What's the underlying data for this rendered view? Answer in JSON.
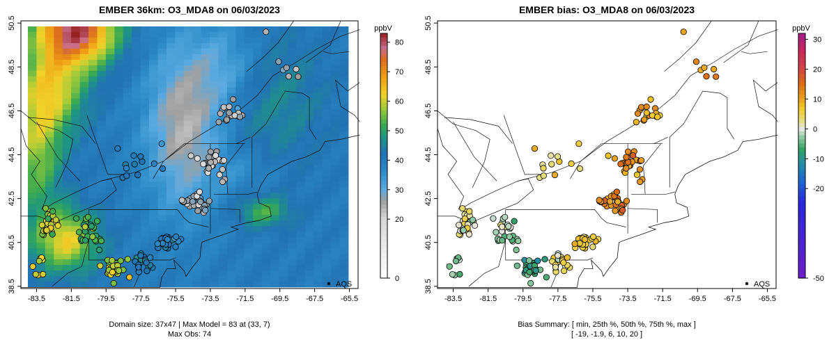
{
  "chart_data": [
    {
      "type": "heatmap",
      "title": "EMBER 36km: O3_MDA8 on 06/03/2023",
      "x_ticks": [
        "-83.5",
        "-81.5",
        "-79.5",
        "-77.5",
        "-75.5",
        "-73.5",
        "-71.5",
        "-69.5",
        "-67.5",
        "-65.5"
      ],
      "y_ticks": [
        "38.5",
        "40.5",
        "42.5",
        "44.5",
        "46.5",
        "48.5",
        "50.5"
      ],
      "xlim": [
        -84.4,
        -65.0
      ],
      "ylim": [
        38.4,
        50.6
      ],
      "colorbar": {
        "label": "ppbV",
        "ticks": [
          "0",
          "20",
          "30",
          "40",
          "50",
          "60",
          "70",
          "80"
        ],
        "range": [
          0,
          83
        ]
      },
      "legend": "AQS",
      "caption_line1": "Domain size: 37x47 | Max Model = 83 at (33, 7)",
      "caption_line2": "Max Obs: 74"
    },
    {
      "type": "scatter",
      "title": "EMBER bias: O3_MDA8 on 06/03/2023",
      "x_ticks": [
        "-83.5",
        "-81.5",
        "-79.5",
        "-77.5",
        "-75.5",
        "-73.5",
        "-71.5",
        "-69.5",
        "-67.5",
        "-65.5"
      ],
      "y_ticks": [
        "38.5",
        "40.5",
        "42.5",
        "44.5",
        "46.5",
        "48.5",
        "50.5"
      ],
      "xlim": [
        -84.4,
        -65.0
      ],
      "ylim": [
        38.4,
        50.6
      ],
      "colorbar": {
        "label": "ppbV",
        "ticks": [
          "-50",
          "-20",
          "-10",
          "0",
          "10",
          "20",
          "30"
        ],
        "range": [
          -50,
          32
        ]
      },
      "legend": "AQS",
      "caption_line1": "Bias Summary: [ min, 25th %, 50th %, 75th %, max ]",
      "caption_line2": "[ -19,  -1.9,  6,  10,  20 ]",
      "bias_summary": {
        "min": -19,
        "p25": -1.9,
        "median": 6,
        "p75": 10,
        "max": 20
      }
    }
  ]
}
